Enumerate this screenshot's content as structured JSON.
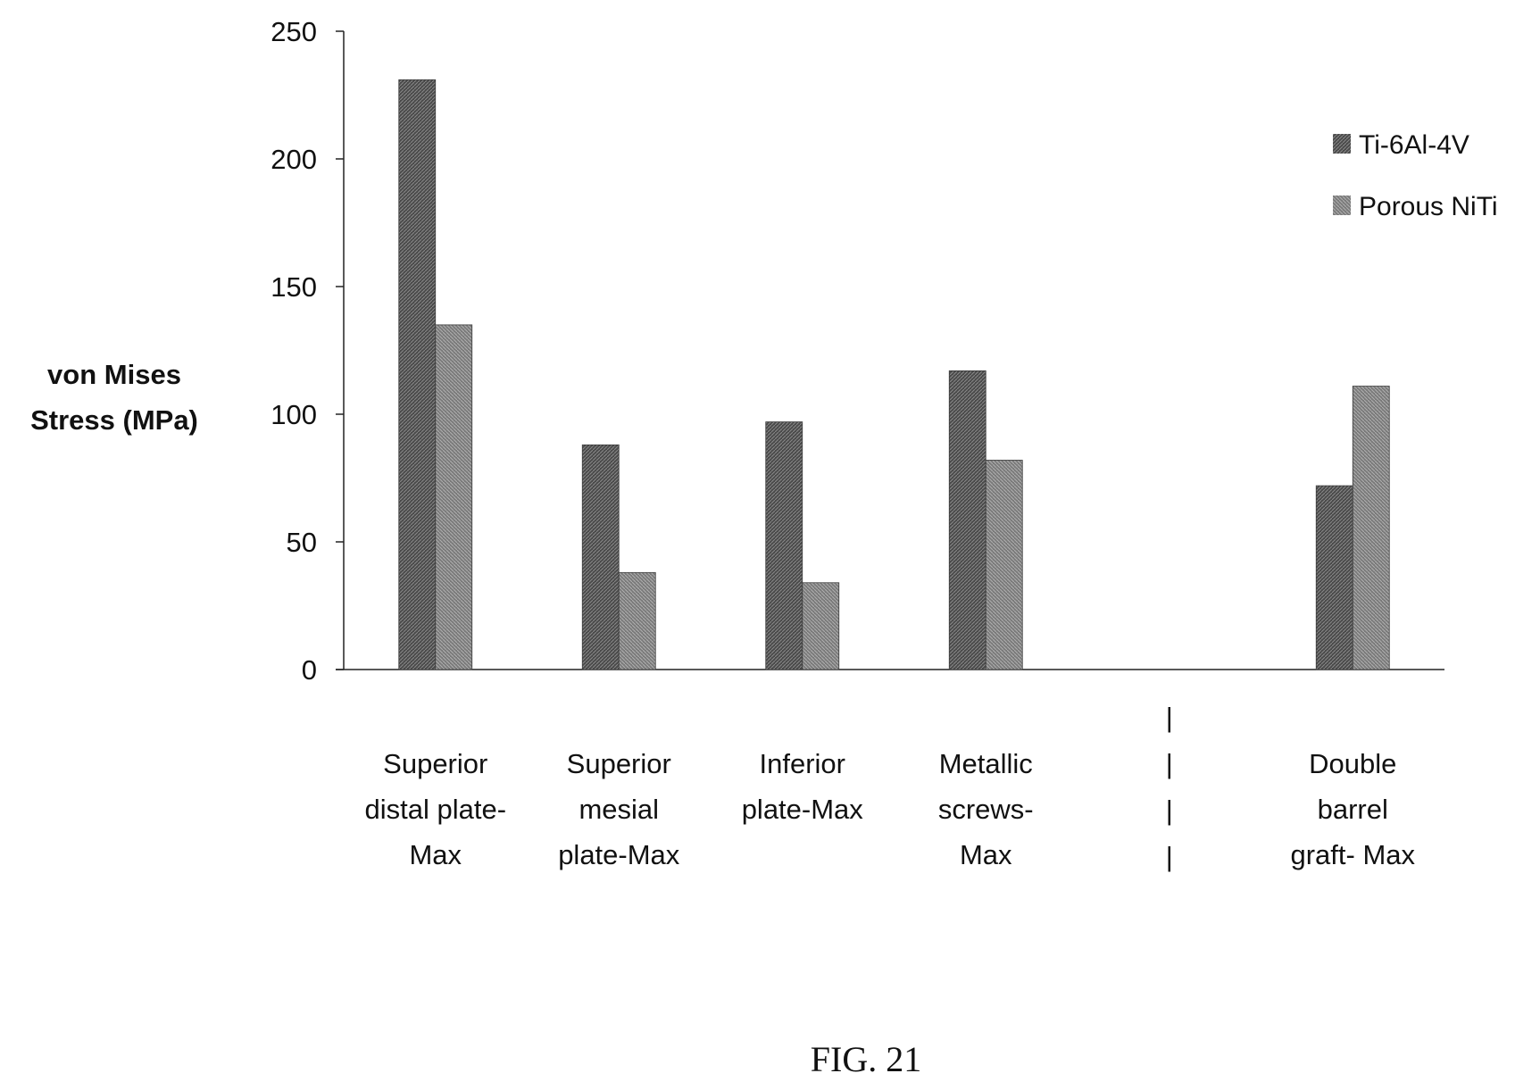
{
  "figure": {
    "caption": "FIG. 21"
  },
  "chart_data": {
    "type": "bar",
    "ylabel_lines": [
      "von Mises",
      "Stress (MPa)"
    ],
    "xlabel": "",
    "ylim": [
      0,
      250
    ],
    "yticks": [
      0,
      50,
      100,
      150,
      200,
      250
    ],
    "grid": false,
    "legend_position": "top-right",
    "categories": [
      [
        "Superior",
        "distal plate-",
        "Max"
      ],
      [
        "Superior",
        "mesial",
        "plate-Max"
      ],
      [
        "Inferior",
        "plate-Max"
      ],
      [
        "Metallic",
        "screws-",
        "Max"
      ],
      [
        "",
        "",
        ""
      ],
      [
        "Double",
        "barrel",
        "graft- Max"
      ]
    ],
    "separator_glyph": "|",
    "series": [
      {
        "name": "Ti-6Al-4V",
        "color": "#555555",
        "values": [
          231,
          88,
          97,
          117,
          null,
          72
        ]
      },
      {
        "name": "Porous NiTi",
        "color": "#808080",
        "values": [
          135,
          38,
          34,
          82,
          null,
          111
        ]
      }
    ]
  }
}
